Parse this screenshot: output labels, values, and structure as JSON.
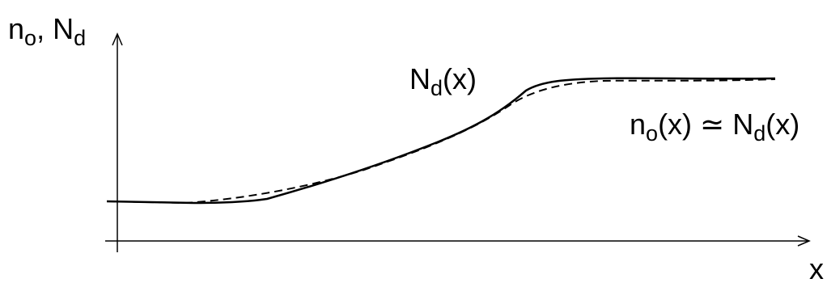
{
  "diagram": {
    "y_axis_label": {
      "n": "n",
      "o": "o",
      "sep": ", N",
      "d": "d"
    },
    "x_axis_label": "x",
    "curve_solid_label": {
      "N": "N",
      "d": "d",
      "x": "(x)"
    },
    "curve_dashed_label": {
      "n": "n",
      "o": "o",
      "mid": "(x) ≃ N",
      "d": "d",
      "x": "(x)"
    },
    "curves": [
      {
        "name": "N_d(x)",
        "style": "solid"
      },
      {
        "name": "n_o(x)",
        "style": "dashed"
      }
    ],
    "colors": {
      "ink": "#000000",
      "background": "#ffffff"
    }
  }
}
